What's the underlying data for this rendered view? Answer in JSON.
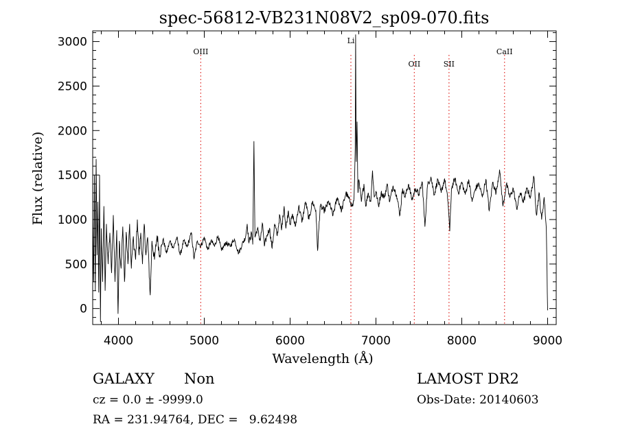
{
  "chart_data": {
    "type": "line",
    "title": "spec-56812-VB231N08V2_sp09-070.fits",
    "xlabel": "Wavelength (Å)",
    "ylabel": "Flux (relative)",
    "xlim": [
      3700,
      9100
    ],
    "ylim": [
      -180,
      3120
    ],
    "x_ticks": [
      4000,
      5000,
      6000,
      7000,
      8000,
      9000
    ],
    "y_ticks": [
      0,
      500,
      1000,
      1500,
      2000,
      2500,
      3000
    ],
    "grid": false,
    "series": [
      {
        "color": "#000000",
        "anchors": [
          [
            3700,
            1050
          ],
          [
            3710,
            300
          ],
          [
            3720,
            1500
          ],
          [
            3730,
            200
          ],
          [
            3740,
            1680
          ],
          [
            3750,
            600
          ],
          [
            3760,
            1200
          ],
          [
            3770,
            180
          ],
          [
            3780,
            1500
          ],
          [
            3790,
            -150
          ],
          [
            3800,
            900
          ],
          [
            3815,
            300
          ],
          [
            3830,
            1150
          ],
          [
            3845,
            200
          ],
          [
            3860,
            950
          ],
          [
            3880,
            500
          ],
          [
            3900,
            850
          ],
          [
            3920,
            400
          ],
          [
            3940,
            1050
          ],
          [
            3960,
            300
          ],
          [
            3980,
            880
          ],
          [
            3995,
            -60
          ],
          [
            4010,
            760
          ],
          [
            4030,
            450
          ],
          [
            4050,
            920
          ],
          [
            4070,
            300
          ],
          [
            4090,
            860
          ],
          [
            4110,
            500
          ],
          [
            4130,
            950
          ],
          [
            4150,
            450
          ],
          [
            4170,
            780
          ],
          [
            4200,
            550
          ],
          [
            4220,
            1000
          ],
          [
            4240,
            600
          ],
          [
            4260,
            850
          ],
          [
            4280,
            500
          ],
          [
            4300,
            950
          ],
          [
            4320,
            600
          ],
          [
            4340,
            800
          ],
          [
            4370,
            150
          ],
          [
            4390,
            760
          ],
          [
            4420,
            550
          ],
          [
            4450,
            820
          ],
          [
            4480,
            600
          ],
          [
            4520,
            780
          ],
          [
            4560,
            620
          ],
          [
            4600,
            760
          ],
          [
            4640,
            680
          ],
          [
            4680,
            800
          ],
          [
            4720,
            600
          ],
          [
            4760,
            760
          ],
          [
            4800,
            690
          ],
          [
            4850,
            850
          ],
          [
            4880,
            560
          ],
          [
            4920,
            760
          ],
          [
            4960,
            700
          ],
          [
            5000,
            800
          ],
          [
            5040,
            660
          ],
          [
            5080,
            760
          ],
          [
            5120,
            700
          ],
          [
            5160,
            820
          ],
          [
            5200,
            650
          ],
          [
            5250,
            740
          ],
          [
            5300,
            700
          ],
          [
            5350,
            780
          ],
          [
            5400,
            620
          ],
          [
            5440,
            720
          ],
          [
            5480,
            800
          ],
          [
            5500,
            950
          ],
          [
            5520,
            740
          ],
          [
            5550,
            850
          ],
          [
            5565,
            720
          ],
          [
            5578,
            1880
          ],
          [
            5590,
            800
          ],
          [
            5620,
            900
          ],
          [
            5650,
            760
          ],
          [
            5680,
            950
          ],
          [
            5700,
            700
          ],
          [
            5730,
            820
          ],
          [
            5760,
            900
          ],
          [
            5790,
            680
          ],
          [
            5820,
            950
          ],
          [
            5850,
            820
          ],
          [
            5880,
            1050
          ],
          [
            5900,
            880
          ],
          [
            5930,
            1150
          ],
          [
            5950,
            900
          ],
          [
            5980,
            1100
          ],
          [
            6000,
            950
          ],
          [
            6030,
            1050
          ],
          [
            6060,
            920
          ],
          [
            6100,
            1150
          ],
          [
            6140,
            980
          ],
          [
            6180,
            1200
          ],
          [
            6220,
            1000
          ],
          [
            6260,
            1200
          ],
          [
            6300,
            1100
          ],
          [
            6320,
            650
          ],
          [
            6350,
            1150
          ],
          [
            6400,
            1100
          ],
          [
            6450,
            1200
          ],
          [
            6500,
            1050
          ],
          [
            6550,
            1250
          ],
          [
            6600,
            1100
          ],
          [
            6650,
            1300
          ],
          [
            6700,
            1200
          ],
          [
            6730,
            1150
          ],
          [
            6745,
            1250
          ],
          [
            6752,
            1500
          ],
          [
            6758,
            1800
          ],
          [
            6763,
            3080
          ],
          [
            6770,
            1650
          ],
          [
            6780,
            2100
          ],
          [
            6790,
            1300
          ],
          [
            6800,
            1450
          ],
          [
            6830,
            1200
          ],
          [
            6860,
            1400
          ],
          [
            6880,
            1150
          ],
          [
            6910,
            1300
          ],
          [
            6940,
            1200
          ],
          [
            6960,
            1550
          ],
          [
            6980,
            1250
          ],
          [
            7000,
            1320
          ],
          [
            7030,
            1150
          ],
          [
            7060,
            1300
          ],
          [
            7100,
            1250
          ],
          [
            7130,
            1400
          ],
          [
            7160,
            1200
          ],
          [
            7200,
            1380
          ],
          [
            7240,
            1280
          ],
          [
            7280,
            1050
          ],
          [
            7310,
            1350
          ],
          [
            7340,
            1250
          ],
          [
            7380,
            1400
          ],
          [
            7420,
            1220
          ],
          [
            7460,
            1350
          ],
          [
            7500,
            1280
          ],
          [
            7540,
            1420
          ],
          [
            7570,
            920
          ],
          [
            7600,
            1380
          ],
          [
            7640,
            1480
          ],
          [
            7680,
            1280
          ],
          [
            7720,
            1450
          ],
          [
            7760,
            1300
          ],
          [
            7800,
            1460
          ],
          [
            7840,
            1200
          ],
          [
            7860,
            870
          ],
          [
            7880,
            1350
          ],
          [
            7920,
            1460
          ],
          [
            7960,
            1300
          ],
          [
            8000,
            1420
          ],
          [
            8040,
            1280
          ],
          [
            8080,
            1450
          ],
          [
            8120,
            1200
          ],
          [
            8160,
            1350
          ],
          [
            8200,
            1400
          ],
          [
            8240,
            1250
          ],
          [
            8280,
            1450
          ],
          [
            8320,
            1100
          ],
          [
            8360,
            1420
          ],
          [
            8400,
            1300
          ],
          [
            8440,
            1560
          ],
          [
            8480,
            1150
          ],
          [
            8520,
            1400
          ],
          [
            8560,
            1250
          ],
          [
            8600,
            1350
          ],
          [
            8640,
            1120
          ],
          [
            8680,
            1300
          ],
          [
            8720,
            1200
          ],
          [
            8760,
            1350
          ],
          [
            8800,
            1250
          ],
          [
            8840,
            1480
          ],
          [
            8870,
            1050
          ],
          [
            8900,
            1300
          ],
          [
            8930,
            1000
          ],
          [
            8960,
            1250
          ],
          [
            8985,
            900
          ],
          [
            9000,
            -20
          ]
        ]
      }
    ],
    "lines": [
      {
        "label": "OIII",
        "x": 4959
      },
      {
        "label": "Li",
        "x": 6708
      },
      {
        "label": "OII",
        "x": 7447
      },
      {
        "label": "SII",
        "x": 7851
      },
      {
        "label": "CaII",
        "x": 8498
      }
    ],
    "line_color": "#e0201b"
  },
  "info": {
    "class_label": "GALAXY",
    "subclass_label": "Non",
    "survey_label": "LAMOST DR2",
    "cz_text": "cz = 0.0 ± -9999.0",
    "obs_date_text": "Obs-Date: 20140603",
    "radec_text": "RA = 231.94764, DEC =   9.62498"
  }
}
